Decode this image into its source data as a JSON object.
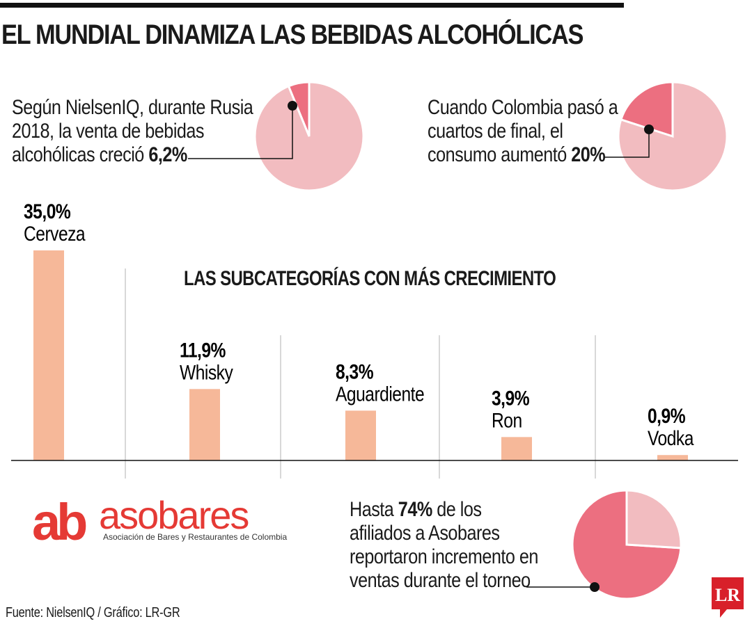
{
  "title": "EL MUNDIAL DINAMIZA LAS BEBIDAS ALCOHÓLICAS",
  "notes": {
    "russia": {
      "lines": [
        "Según NielsenIQ, durante Rusia",
        "2018, la venta de bebidas"
      ],
      "last_prefix": "alcohólicas creció ",
      "value": "6,2%"
    },
    "quarterfinal": {
      "lines": [
        "Cuando Colombia pasó a",
        "cuartos de final, el"
      ],
      "last_prefix": "consumo aumentó ",
      "value": "20%"
    },
    "asobares": {
      "first_prefix": "Hasta ",
      "value": "74%",
      "first_suffix": " de los",
      "lines": [
        "afiliados a Asobares",
        "reportaron incremento en",
        "ventas durante el torneo"
      ]
    }
  },
  "logo": {
    "mark": "ab",
    "name": "asobares",
    "subtitle": "Asociación de Bares y Restaurantes de Colombia"
  },
  "source": "Fuente: NielsenIQ / Gráfico: LR-GR",
  "badge": "LR",
  "colors": {
    "pie_light": "#f2bcc0",
    "pie_dark": "#ec6f80",
    "bar": "#f6b899",
    "logo_red": "#e53a35",
    "badge_red": "#d8202a"
  },
  "chart_data": [
    {
      "type": "pie",
      "slices": [
        {
          "value": 6.2,
          "highlight": true
        },
        {
          "value": 93.8,
          "highlight": false
        }
      ]
    },
    {
      "type": "pie",
      "slices": [
        {
          "value": 20,
          "highlight": true
        },
        {
          "value": 80,
          "highlight": false
        }
      ]
    },
    {
      "type": "pie",
      "slices": [
        {
          "value": 74,
          "highlight": true
        },
        {
          "value": 26,
          "highlight": false
        }
      ]
    },
    {
      "type": "bar",
      "title": "LAS SUBCATEGORÍAS CON MÁS CRECIMIENTO",
      "categories": [
        "Cerveza",
        "Whisky",
        "Aguardiente",
        "Ron",
        "Vodka"
      ],
      "values": [
        35.0,
        11.9,
        8.3,
        3.9,
        0.9
      ],
      "value_labels": [
        "35,0%",
        "11,9%",
        "8,3%",
        "3,9%",
        "0,9%"
      ],
      "ylim": [
        0,
        35
      ],
      "grid": false
    }
  ]
}
